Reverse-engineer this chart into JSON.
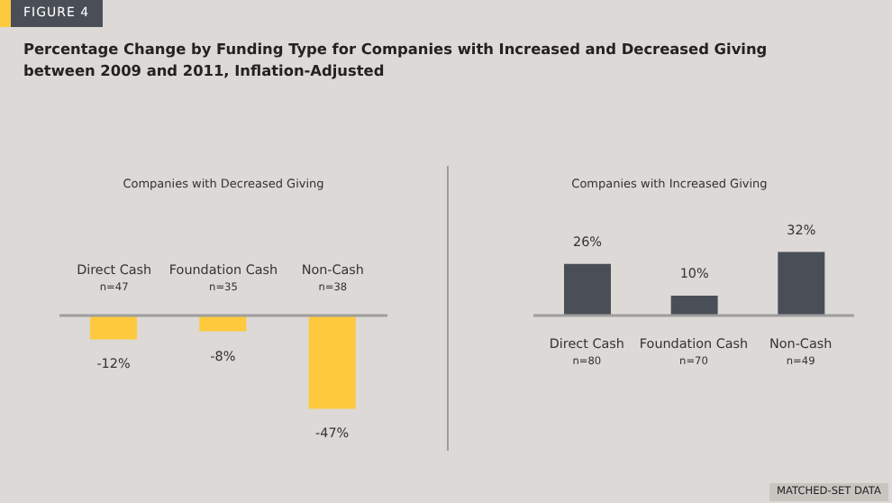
{
  "chart_data": [
    {
      "type": "bar",
      "title": "Percentage Change by Funding Type for Companies with Increased and Decreased Giving between 2009 and 2011, Inflation-Adjusted",
      "subtitle": "Companies with Decreased Giving",
      "annotations": [
        "FIGURE 4",
        "MATCHED-SET DATA"
      ],
      "categories": [
        "Direct Cash\nn=47",
        "Foundation Cash\nn=35",
        "Non-Cash\nn=38"
      ],
      "values": [
        -12,
        -8,
        -47
      ],
      "value_labels": [
        "-12%",
        "-8%",
        "-47%"
      ],
      "color": "#fec93c",
      "grid": false,
      "legend": false
    },
    {
      "type": "bar",
      "subtitle": "Companies with Increased Giving",
      "categories": [
        "Direct Cash\nn=80",
        "Foundation Cash\nn=70",
        "Non-Cash\nn=49"
      ],
      "values": [
        26,
        10,
        32
      ],
      "value_labels": [
        "26%",
        "10%",
        "32%"
      ],
      "color": "#4a4f57",
      "grid": false,
      "legend": false
    }
  ]
}
